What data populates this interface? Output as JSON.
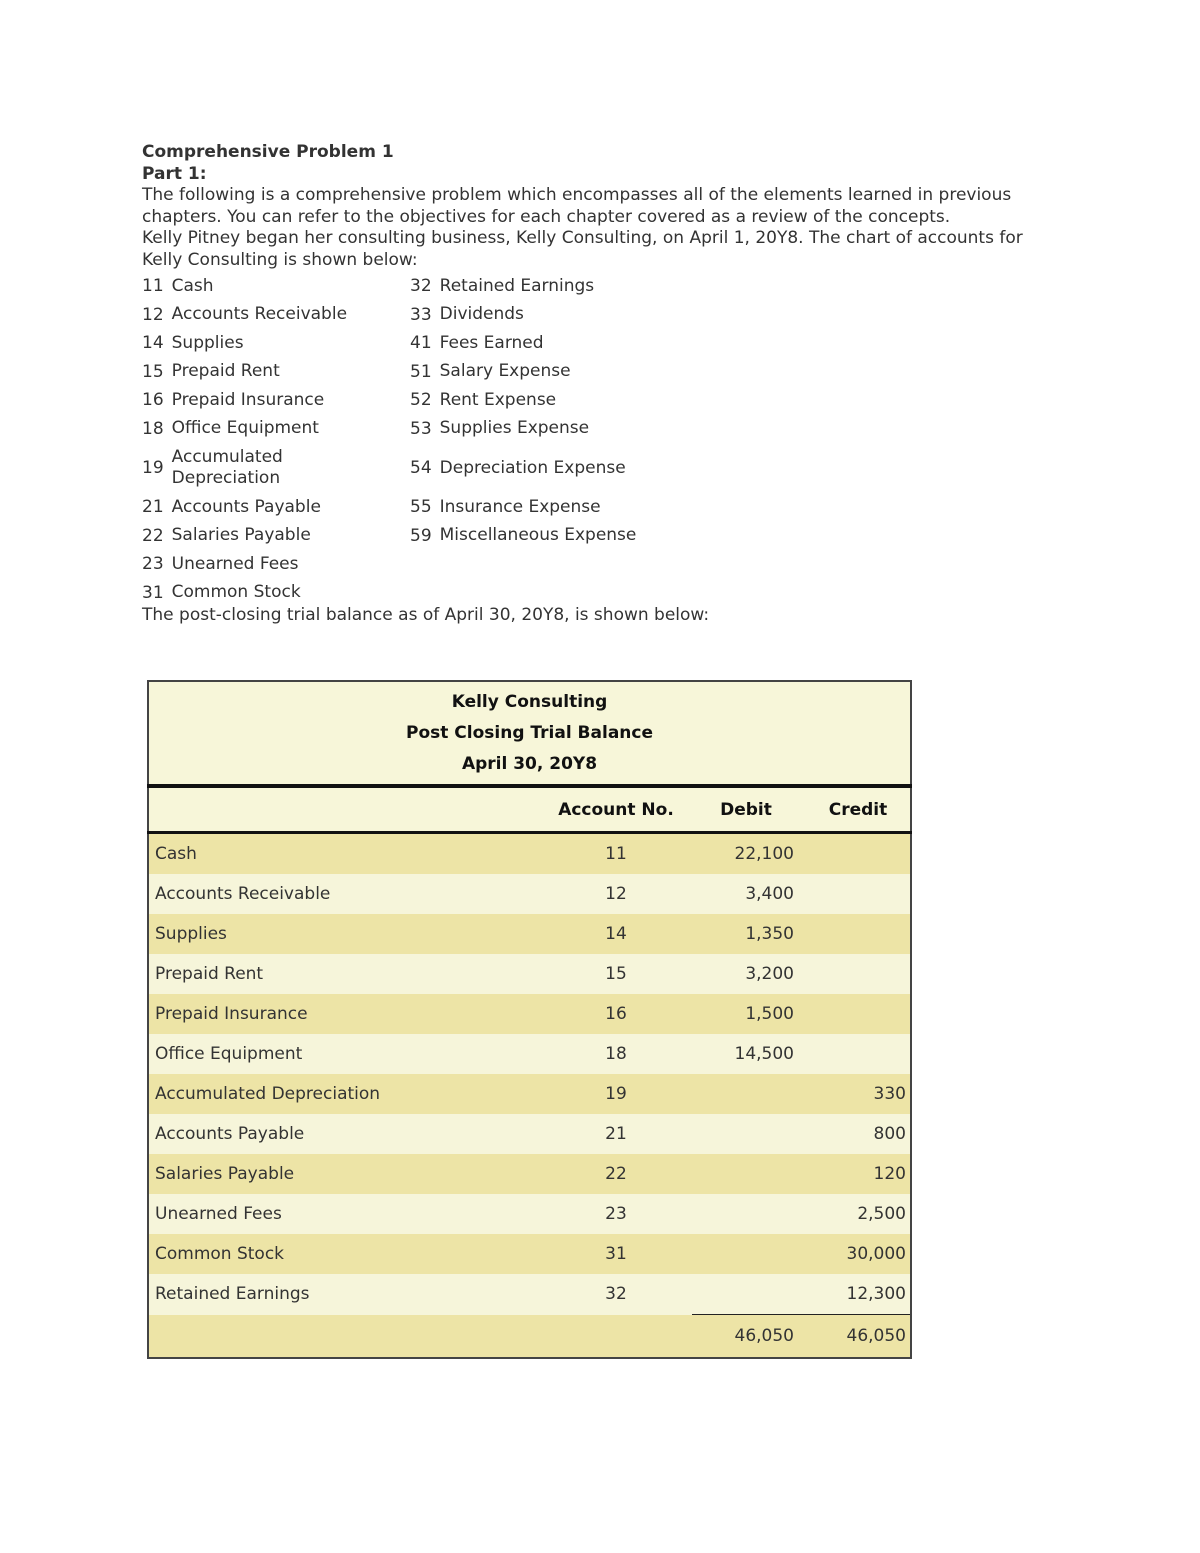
{
  "intro": {
    "title": "Comprehensive Problem 1",
    "part": "Part 1:",
    "paragraph1": "The following is a comprehensive problem which encompasses all of the elements learned in previous chapters. You can refer to the objectives for each chapter covered as a review of the concepts.",
    "paragraph2": "Kelly Pitney began her consulting business, Kelly Consulting, on April 1, 20Y8. The chart of accounts for Kelly Consulting is shown below:"
  },
  "chart_of_accounts": [
    [
      {
        "no": "11",
        "name": "Cash"
      },
      {
        "no": "32",
        "name": "Retained Earnings"
      }
    ],
    [
      {
        "no": "12",
        "name": "Accounts Receivable"
      },
      {
        "no": "33",
        "name": "Dividends"
      }
    ],
    [
      {
        "no": "14",
        "name": "Supplies"
      },
      {
        "no": "41",
        "name": "Fees Earned"
      }
    ],
    [
      {
        "no": "15",
        "name": "Prepaid Rent"
      },
      {
        "no": "51",
        "name": "Salary Expense"
      }
    ],
    [
      {
        "no": "16",
        "name": "Prepaid Insurance"
      },
      {
        "no": "52",
        "name": "Rent Expense"
      }
    ],
    [
      {
        "no": "18",
        "name": "Office Equipment"
      },
      {
        "no": "53",
        "name": "Supplies Expense"
      }
    ],
    [
      {
        "no": "19",
        "name": "Accumulated Depreciation"
      },
      {
        "no": "54",
        "name": "Depreciation Expense"
      }
    ],
    [
      {
        "no": "21",
        "name": "Accounts Payable"
      },
      {
        "no": "55",
        "name": "Insurance Expense"
      }
    ],
    [
      {
        "no": "22",
        "name": "Salaries Payable"
      },
      {
        "no": "59",
        "name": "Miscellaneous Expense"
      }
    ],
    [
      {
        "no": "23",
        "name": "Unearned Fees"
      }
    ],
    [
      {
        "no": "31",
        "name": "Common Stock"
      }
    ]
  ],
  "outro": "The post-closing trial balance as of April 30, 20Y8, is shown below:",
  "trial_balance": {
    "company": "Kelly Consulting",
    "statement": "Post Closing Trial Balance",
    "date": "April 30, 20Y8",
    "columns": {
      "account_no": "Account No.",
      "debit": "Debit",
      "credit": "Credit"
    },
    "rows": [
      {
        "account": "Cash",
        "no": "11",
        "debit": "22,100",
        "credit": ""
      },
      {
        "account": "Accounts Receivable",
        "no": "12",
        "debit": "3,400",
        "credit": ""
      },
      {
        "account": "Supplies",
        "no": "14",
        "debit": "1,350",
        "credit": ""
      },
      {
        "account": "Prepaid Rent",
        "no": "15",
        "debit": "3,200",
        "credit": ""
      },
      {
        "account": "Prepaid Insurance",
        "no": "16",
        "debit": "1,500",
        "credit": ""
      },
      {
        "account": "Office Equipment",
        "no": "18",
        "debit": "14,500",
        "credit": ""
      },
      {
        "account": "Accumulated Depreciation",
        "no": "19",
        "debit": "",
        "credit": "330"
      },
      {
        "account": "Accounts Payable",
        "no": "21",
        "debit": "",
        "credit": "800"
      },
      {
        "account": "Salaries Payable",
        "no": "22",
        "debit": "",
        "credit": "120"
      },
      {
        "account": "Unearned Fees",
        "no": "23",
        "debit": "",
        "credit": "2,500"
      },
      {
        "account": "Common Stock",
        "no": "31",
        "debit": "",
        "credit": "30,000"
      },
      {
        "account": "Retained Earnings",
        "no": "32",
        "debit": "",
        "credit": "12,300"
      }
    ],
    "total_debit": "46,050",
    "total_credit": "46,050"
  },
  "colors": {
    "row_dark": "#ede4a6",
    "row_light": "#f6f5da",
    "header_bg": "#f7f6d9"
  }
}
